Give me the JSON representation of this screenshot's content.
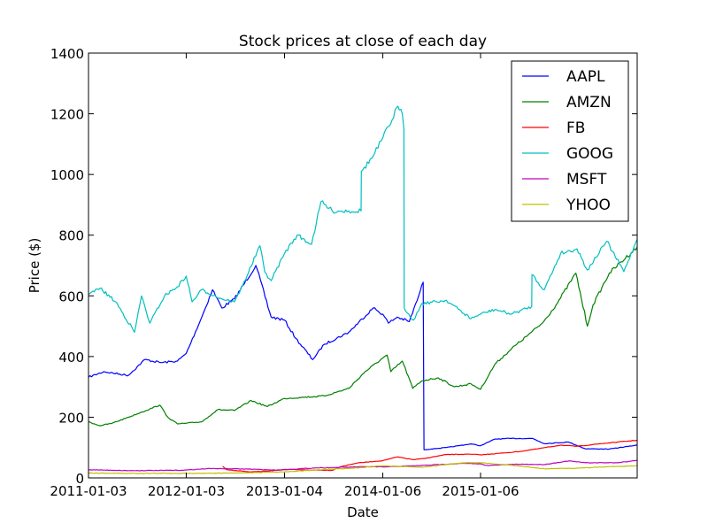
{
  "chart_data": {
    "type": "line",
    "title": "Stock prices at close of each day",
    "xlabel": "Date",
    "ylabel": "Price ($)",
    "xlim": [
      "2011-01-03",
      "2016-08-13"
    ],
    "ylim": [
      0,
      1400
    ],
    "x_ticks": [
      "2011-01-03",
      "2012-01-03",
      "2013-01-04",
      "2014-01-06",
      "2015-01-06"
    ],
    "y_ticks": [
      0,
      200,
      400,
      600,
      800,
      1000,
      1200,
      1400
    ],
    "grid": false,
    "legend_position": "top-right",
    "series": [
      {
        "name": "AAPL",
        "color": "#0000ff",
        "points": [
          [
            "2011-01-03",
            332
          ],
          [
            "2011-03-01",
            350
          ],
          [
            "2011-06-01",
            338
          ],
          [
            "2011-08-01",
            390
          ],
          [
            "2011-10-01",
            380
          ],
          [
            "2011-12-01",
            385
          ],
          [
            "2012-01-03",
            410
          ],
          [
            "2012-03-01",
            530
          ],
          [
            "2012-04-10",
            620
          ],
          [
            "2012-05-15",
            560
          ],
          [
            "2012-07-01",
            590
          ],
          [
            "2012-09-19",
            700
          ],
          [
            "2012-11-15",
            530
          ],
          [
            "2013-01-04",
            520
          ],
          [
            "2013-02-15",
            460
          ],
          [
            "2013-04-19",
            390
          ],
          [
            "2013-06-01",
            440
          ],
          [
            "2013-09-01",
            480
          ],
          [
            "2013-12-01",
            560
          ],
          [
            "2014-01-06",
            540
          ],
          [
            "2014-01-27",
            510
          ],
          [
            "2014-03-01",
            530
          ],
          [
            "2014-04-15",
            515
          ],
          [
            "2014-05-20",
            600
          ],
          [
            "2014-06-06",
            645
          ],
          [
            "2014-06-09",
            93
          ],
          [
            "2014-09-01",
            100
          ],
          [
            "2014-12-01",
            112
          ],
          [
            "2015-01-06",
            106
          ],
          [
            "2015-03-01",
            128
          ],
          [
            "2015-05-01",
            130
          ],
          [
            "2015-07-20",
            130
          ],
          [
            "2015-09-01",
            113
          ],
          [
            "2015-12-01",
            118
          ],
          [
            "2016-02-01",
            96
          ],
          [
            "2016-05-01",
            95
          ],
          [
            "2016-08-12",
            108
          ]
        ]
      },
      {
        "name": "AMZN",
        "color": "#008000",
        "points": [
          [
            "2011-01-03",
            185
          ],
          [
            "2011-02-15",
            172
          ],
          [
            "2011-04-01",
            180
          ],
          [
            "2011-06-01",
            200
          ],
          [
            "2011-07-15",
            215
          ],
          [
            "2011-09-26",
            240
          ],
          [
            "2011-10-26",
            200
          ],
          [
            "2011-12-01",
            178
          ],
          [
            "2012-01-03",
            180
          ],
          [
            "2012-03-01",
            185
          ],
          [
            "2012-04-30",
            225
          ],
          [
            "2012-07-01",
            222
          ],
          [
            "2012-09-01",
            255
          ],
          [
            "2012-11-01",
            235
          ],
          [
            "2013-01-04",
            262
          ],
          [
            "2013-03-01",
            265
          ],
          [
            "2013-06-01",
            270
          ],
          [
            "2013-09-01",
            295
          ],
          [
            "2013-11-01",
            350
          ],
          [
            "2014-01-06",
            395
          ],
          [
            "2014-01-22",
            405
          ],
          [
            "2014-02-05",
            350
          ],
          [
            "2014-03-20",
            385
          ],
          [
            "2014-04-28",
            295
          ],
          [
            "2014-06-01",
            320
          ],
          [
            "2014-08-01",
            330
          ],
          [
            "2014-10-01",
            300
          ],
          [
            "2014-12-01",
            310
          ],
          [
            "2015-01-06",
            292
          ],
          [
            "2015-03-01",
            375
          ],
          [
            "2015-05-01",
            425
          ],
          [
            "2015-07-15",
            480
          ],
          [
            "2015-08-25",
            510
          ],
          [
            "2015-10-15",
            570
          ],
          [
            "2015-12-28",
            675
          ],
          [
            "2016-02-09",
            500
          ],
          [
            "2016-03-01",
            570
          ],
          [
            "2016-05-01",
            675
          ],
          [
            "2016-08-12",
            760
          ]
        ]
      },
      {
        "name": "FB",
        "color": "#ff0000",
        "points": [
          [
            "2012-05-18",
            38
          ],
          [
            "2012-06-01",
            27
          ],
          [
            "2012-08-01",
            22
          ],
          [
            "2012-09-01",
            20
          ],
          [
            "2012-11-01",
            22
          ],
          [
            "2013-01-04",
            28
          ],
          [
            "2013-04-01",
            26
          ],
          [
            "2013-07-01",
            25
          ],
          [
            "2013-08-01",
            37
          ],
          [
            "2013-10-01",
            49
          ],
          [
            "2013-12-01",
            54
          ],
          [
            "2014-01-06",
            57
          ],
          [
            "2014-03-01",
            69
          ],
          [
            "2014-05-01",
            60
          ],
          [
            "2014-06-10",
            64
          ],
          [
            "2014-09-01",
            77
          ],
          [
            "2014-12-01",
            78
          ],
          [
            "2015-01-06",
            76
          ],
          [
            "2015-04-01",
            82
          ],
          [
            "2015-06-01",
            87
          ],
          [
            "2015-08-01",
            95
          ],
          [
            "2015-11-01",
            108
          ],
          [
            "2016-01-01",
            104
          ],
          [
            "2016-04-01",
            113
          ],
          [
            "2016-06-01",
            118
          ],
          [
            "2016-08-12",
            124
          ]
        ]
      },
      {
        "name": "GOOG",
        "color": "#00bfbf",
        "points": [
          [
            "2011-01-03",
            605
          ],
          [
            "2011-02-15",
            625
          ],
          [
            "2011-04-15",
            580
          ],
          [
            "2011-06-24",
            480
          ],
          [
            "2011-07-20",
            600
          ],
          [
            "2011-08-20",
            510
          ],
          [
            "2011-10-14",
            600
          ],
          [
            "2011-12-01",
            630
          ],
          [
            "2012-01-03",
            665
          ],
          [
            "2012-01-25",
            580
          ],
          [
            "2012-03-01",
            620
          ],
          [
            "2012-05-15",
            590
          ],
          [
            "2012-07-01",
            580
          ],
          [
            "2012-08-01",
            635
          ],
          [
            "2012-10-04",
            765
          ],
          [
            "2012-10-22",
            680
          ],
          [
            "2012-11-15",
            650
          ],
          [
            "2013-01-04",
            740
          ],
          [
            "2013-02-20",
            800
          ],
          [
            "2013-04-15",
            770
          ],
          [
            "2013-05-20",
            910
          ],
          [
            "2013-07-01",
            880
          ],
          [
            "2013-09-01",
            880
          ],
          [
            "2013-10-17",
            880
          ],
          [
            "2013-10-18",
            1010
          ],
          [
            "2013-12-01",
            1060
          ],
          [
            "2014-01-06",
            1120
          ],
          [
            "2014-02-10",
            1180
          ],
          [
            "2014-02-26",
            1220
          ],
          [
            "2014-03-20",
            1200
          ],
          [
            "2014-03-26",
            1150
          ],
          [
            "2014-03-27",
            560
          ],
          [
            "2014-05-01",
            520
          ],
          [
            "2014-06-01",
            575
          ],
          [
            "2014-09-01",
            585
          ],
          [
            "2014-12-01",
            525
          ],
          [
            "2015-01-06",
            540
          ],
          [
            "2015-03-01",
            555
          ],
          [
            "2015-05-01",
            540
          ],
          [
            "2015-07-16",
            565
          ],
          [
            "2015-07-17",
            670
          ],
          [
            "2015-09-01",
            620
          ],
          [
            "2015-11-01",
            740
          ],
          [
            "2016-01-01",
            755
          ],
          [
            "2016-02-09",
            685
          ],
          [
            "2016-04-21",
            780
          ],
          [
            "2016-06-24",
            680
          ],
          [
            "2016-08-12",
            785
          ]
        ]
      },
      {
        "name": "MSFT",
        "color": "#bf00bf",
        "points": [
          [
            "2011-01-03",
            27
          ],
          [
            "2011-06-01",
            24
          ],
          [
            "2011-12-01",
            25
          ],
          [
            "2012-01-03",
            26
          ],
          [
            "2012-04-01",
            31
          ],
          [
            "2012-09-01",
            29
          ],
          [
            "2012-11-20",
            26
          ],
          [
            "2013-01-04",
            27
          ],
          [
            "2013-05-01",
            33
          ],
          [
            "2013-07-01",
            34
          ],
          [
            "2013-11-01",
            37
          ],
          [
            "2014-01-06",
            36
          ],
          [
            "2014-06-01",
            41
          ],
          [
            "2014-11-01",
            48
          ],
          [
            "2015-01-06",
            46
          ],
          [
            "2015-02-01",
            41
          ],
          [
            "2015-06-01",
            45
          ],
          [
            "2015-09-01",
            44
          ],
          [
            "2015-12-01",
            56
          ],
          [
            "2016-02-01",
            50
          ],
          [
            "2016-06-01",
            50
          ],
          [
            "2016-08-12",
            58
          ]
        ]
      },
      {
        "name": "YHOO",
        "color": "#bfbf00",
        "points": [
          [
            "2011-01-03",
            16
          ],
          [
            "2011-06-01",
            15
          ],
          [
            "2012-01-03",
            15
          ],
          [
            "2012-07-01",
            16
          ],
          [
            "2013-01-04",
            20
          ],
          [
            "2013-05-01",
            26
          ],
          [
            "2013-10-01",
            33
          ],
          [
            "2014-01-06",
            40
          ],
          [
            "2014-06-01",
            35
          ],
          [
            "2014-11-01",
            50
          ],
          [
            "2015-01-06",
            50
          ],
          [
            "2015-05-01",
            42
          ],
          [
            "2015-09-01",
            30
          ],
          [
            "2016-01-01",
            32
          ],
          [
            "2016-05-01",
            37
          ],
          [
            "2016-08-12",
            40
          ]
        ]
      }
    ]
  }
}
